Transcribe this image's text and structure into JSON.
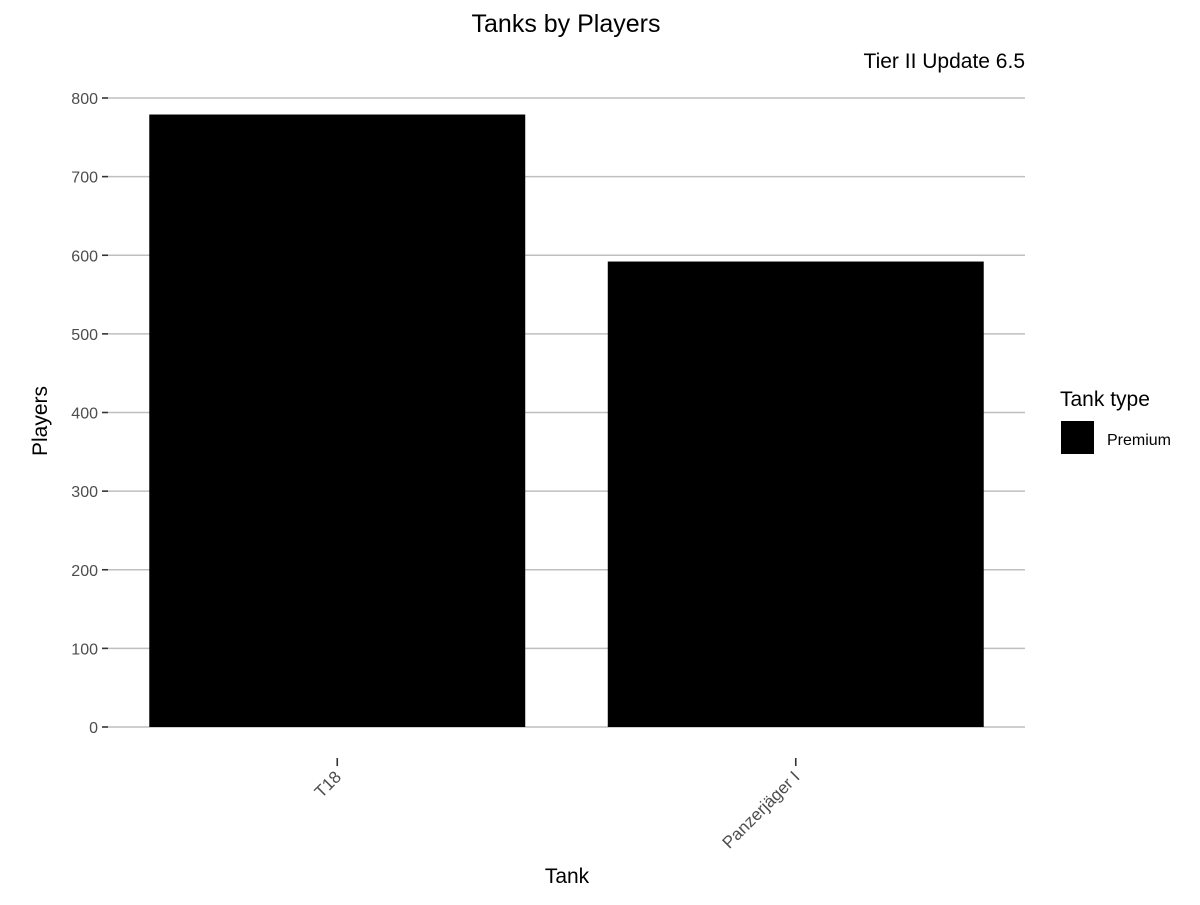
{
  "chart_data": {
    "type": "bar",
    "title": "Tanks by Players",
    "subtitle": "Tier II Update 6.5",
    "xlabel": "Tank",
    "ylabel": "Players",
    "categories": [
      "T18",
      "Panzerjäger I"
    ],
    "series": [
      {
        "name": "Premium",
        "values": [
          779,
          592
        ],
        "color": "#000000"
      }
    ],
    "ylim": [
      0,
      800
    ],
    "yticks": [
      "0",
      "100",
      "200",
      "300",
      "400",
      "500",
      "600",
      "700",
      "800"
    ],
    "grid": true,
    "legend": {
      "title": "Tank type",
      "placement": "right"
    }
  }
}
